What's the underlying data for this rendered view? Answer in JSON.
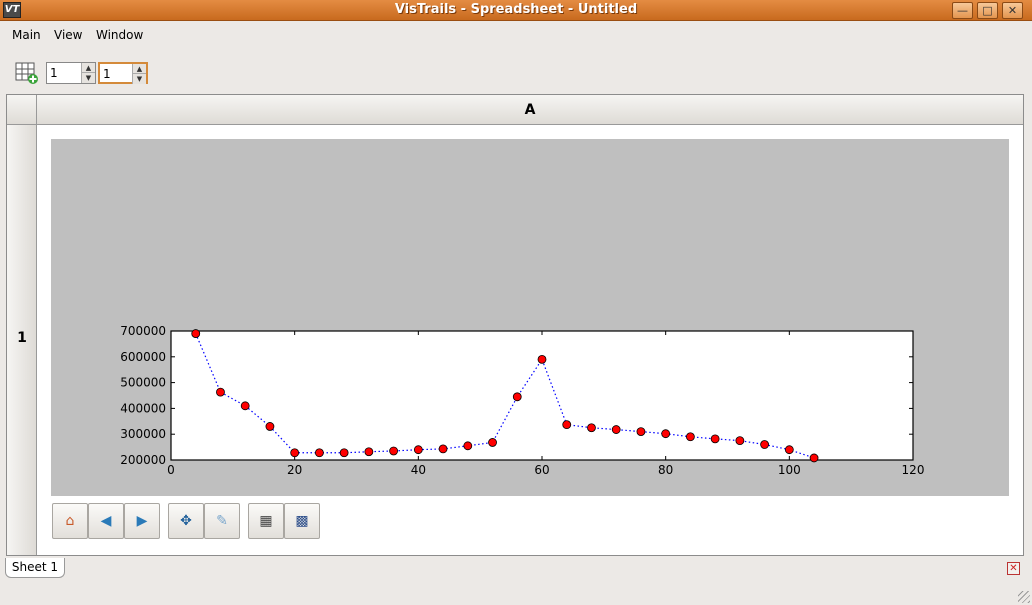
{
  "window": {
    "title": "VisTrails - Spreadsheet - Untitled",
    "icon_text": "VT"
  },
  "menu": {
    "items": [
      "Main",
      "View",
      "Window"
    ]
  },
  "toolbar": {
    "rows_value": "1",
    "cols_value": "1"
  },
  "sheet": {
    "column_header": "A",
    "row_header": "1",
    "tab_label": "Sheet 1"
  },
  "chart_data": {
    "type": "line",
    "x": [
      4,
      8,
      12,
      16,
      20,
      24,
      28,
      32,
      36,
      40,
      44,
      48,
      52,
      56,
      60,
      64,
      68,
      72,
      76,
      80,
      84,
      88,
      92,
      96,
      100,
      104
    ],
    "series": [
      {
        "values": [
          690000,
          463000,
          410000,
          330000,
          228000,
          228000,
          228000,
          232000,
          235000,
          240000,
          243000,
          255000,
          268000,
          445000,
          590000,
          337000,
          325000,
          318000,
          310000,
          302000,
          290000,
          282000,
          275000,
          260000,
          240000,
          208000
        ],
        "line_color": "#0000ff",
        "marker_color": "#ff0000",
        "line_style": "dotted"
      }
    ],
    "xlim": [
      0,
      120
    ],
    "ylim": [
      200000,
      700000
    ],
    "xticks": [
      "0",
      "20",
      "40",
      "60",
      "80",
      "100",
      "120"
    ],
    "yticks": [
      "200000",
      "300000",
      "400000",
      "500000",
      "600000",
      "700000"
    ],
    "grid": false
  },
  "colors": {
    "titlebar": "#d77a31",
    "plot_background": "#bfbfbf"
  }
}
